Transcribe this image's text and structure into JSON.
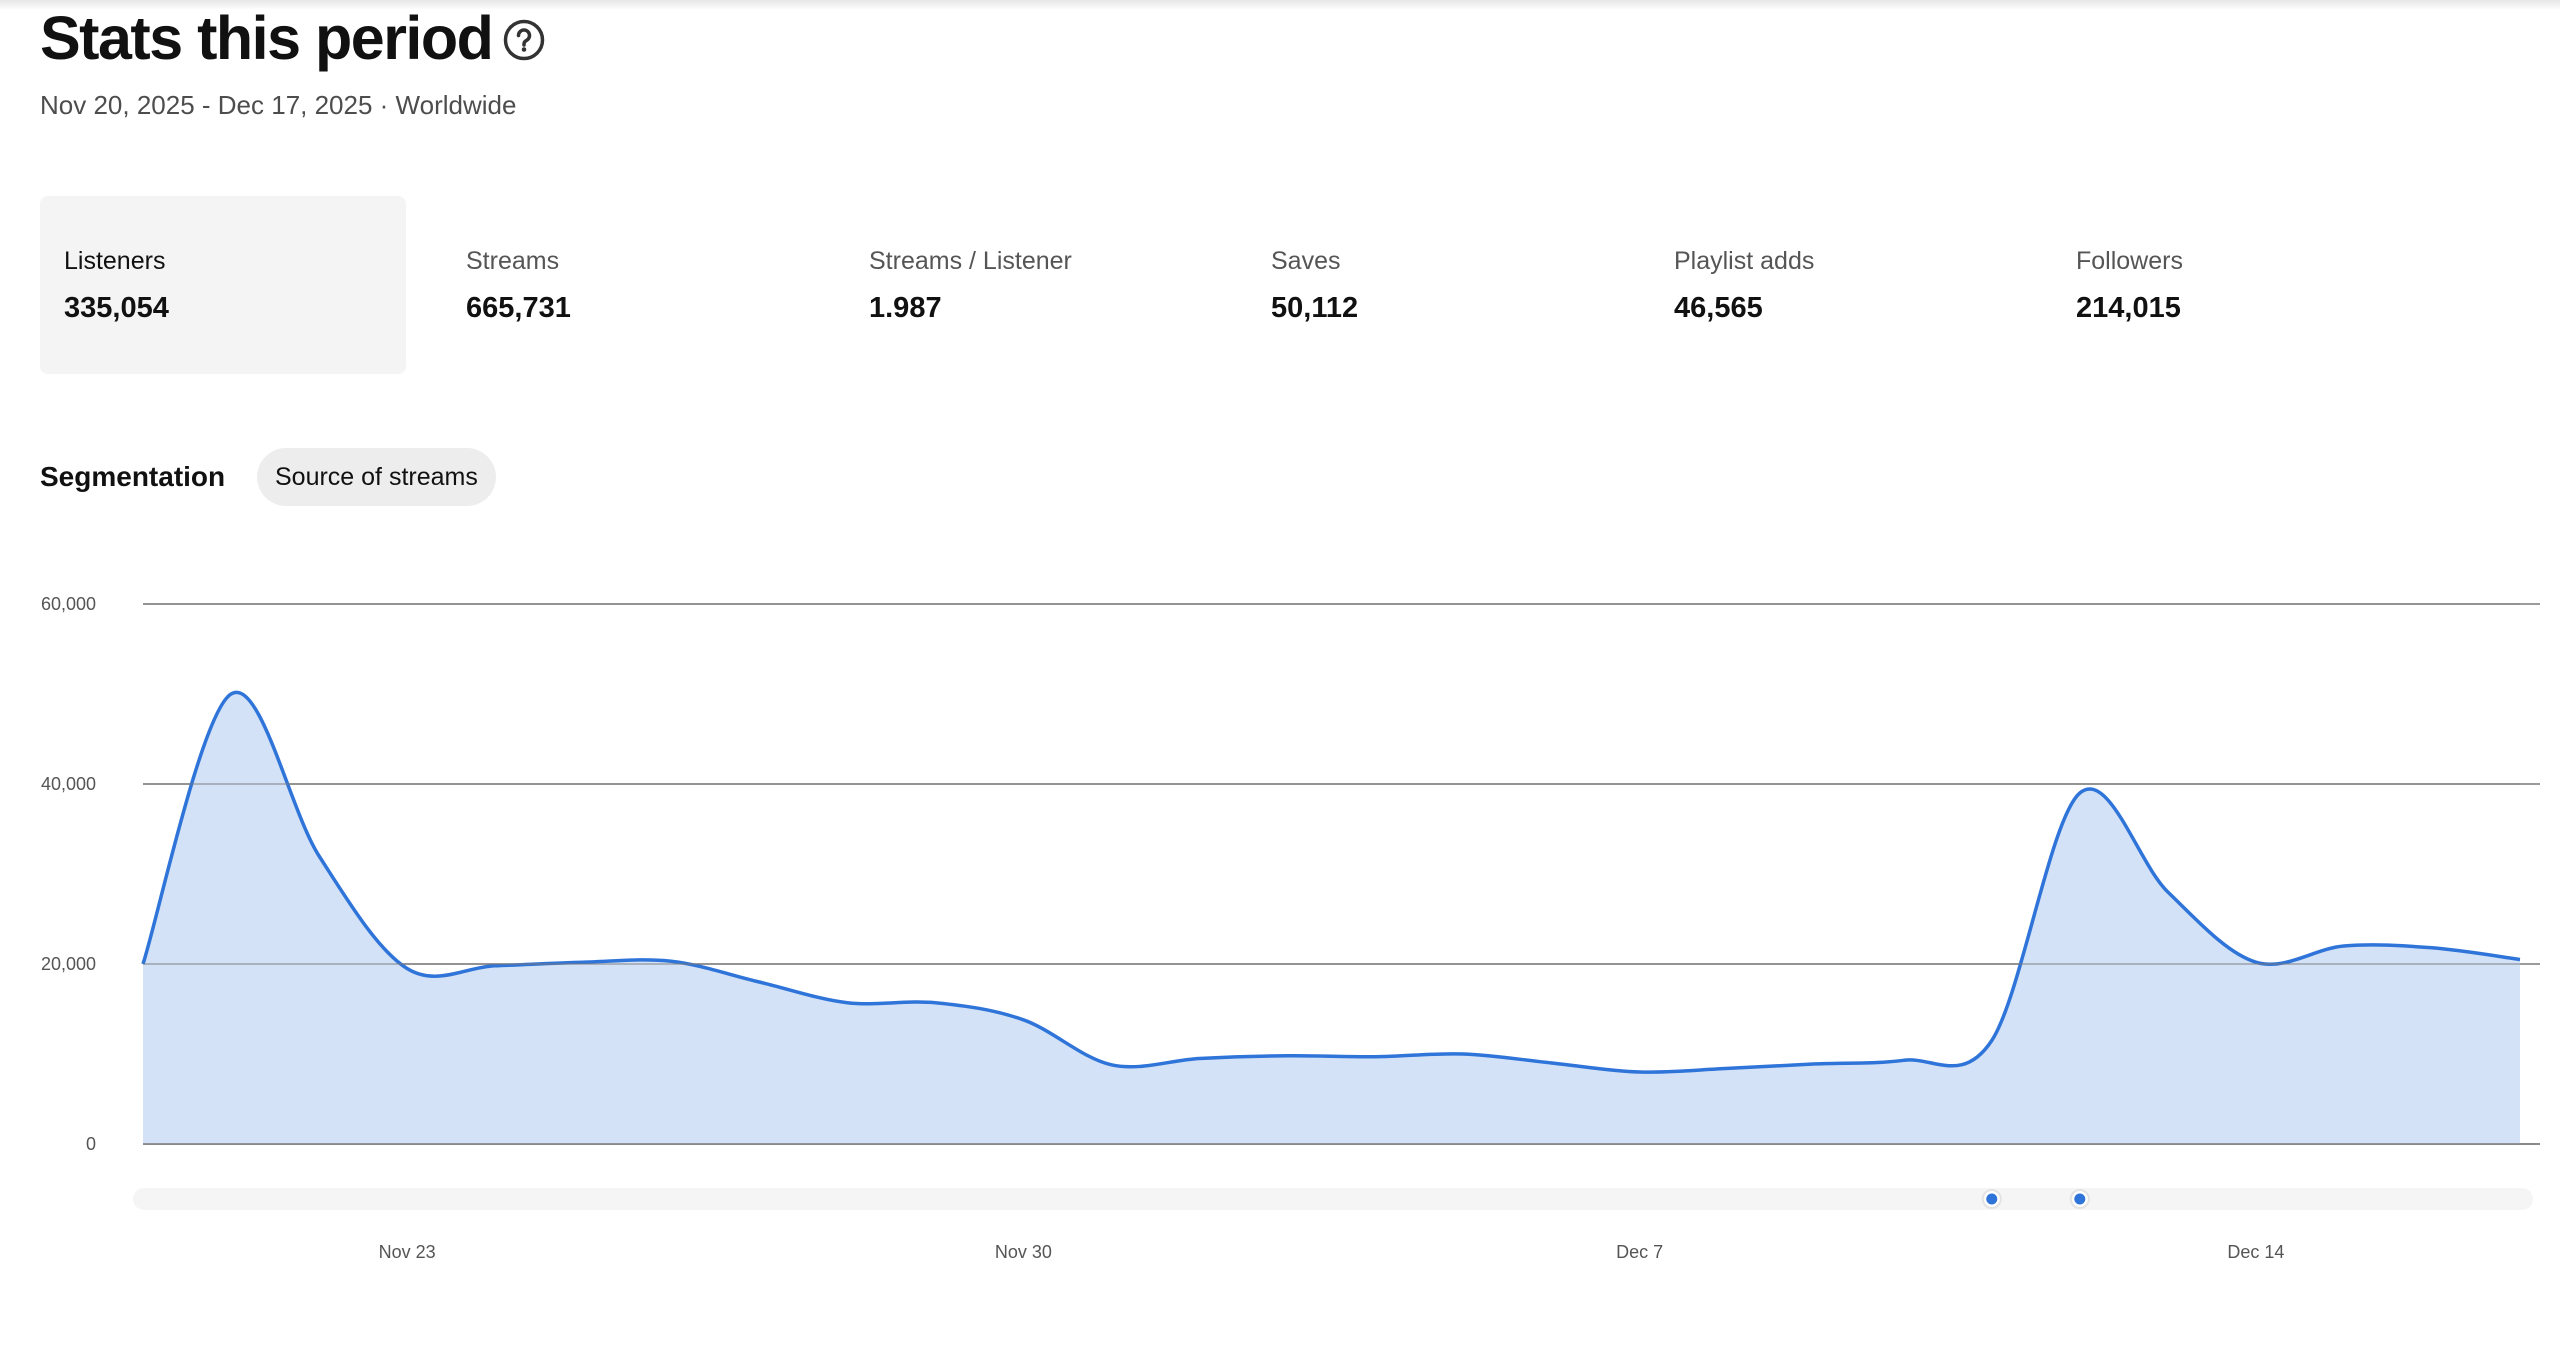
{
  "header": {
    "title": "Stats this period",
    "help_icon": "question-circle-icon",
    "subtitle": "Nov 20, 2025 - Dec 17, 2025 · Worldwide"
  },
  "metrics": [
    {
      "label": "Listeners",
      "value": "335,054",
      "selected": true
    },
    {
      "label": "Streams",
      "value": "665,731",
      "selected": false
    },
    {
      "label": "Streams / Listener",
      "value": "1.987",
      "selected": false
    },
    {
      "label": "Saves",
      "value": "50,112",
      "selected": false
    },
    {
      "label": "Playlist adds",
      "value": "46,565",
      "selected": false
    },
    {
      "label": "Followers",
      "value": "214,015",
      "selected": false
    }
  ],
  "segmentation": {
    "label": "Segmentation",
    "chip_label": "Source of streams"
  },
  "colors": {
    "line": "#2f74d9",
    "area": "#d3e2f6",
    "grid": "#7a7a7a",
    "selected_card": "#f4f4f4",
    "chip": "#ededed"
  },
  "chart_data": {
    "type": "area",
    "x": [
      "2025-11-20",
      "2025-11-21",
      "2025-11-22",
      "2025-11-23",
      "2025-11-24",
      "2025-11-25",
      "2025-11-26",
      "2025-11-27",
      "2025-11-28",
      "2025-11-29",
      "2025-11-30",
      "2025-12-01",
      "2025-12-02",
      "2025-12-03",
      "2025-12-04",
      "2025-12-05",
      "2025-12-06",
      "2025-12-07",
      "2025-12-08",
      "2025-12-09",
      "2025-12-10",
      "2025-12-11",
      "2025-12-12",
      "2025-12-13",
      "2025-12-14",
      "2025-12-15",
      "2025-12-16",
      "2025-12-17"
    ],
    "series": [
      {
        "values": [
          20000,
          50000,
          32000,
          19500,
          19800,
          20200,
          20300,
          18000,
          15700,
          15700,
          13800,
          8800,
          9500,
          9800,
          9700,
          10000,
          9000,
          8000,
          8400,
          8900,
          9300,
          11500,
          39000,
          28000,
          20200,
          22000,
          21800,
          20500
        ]
      }
    ],
    "ylim": [
      0,
      60000
    ],
    "yticks": [
      0,
      20000,
      40000,
      60000
    ],
    "ytick_labels": [
      "0",
      "20,000",
      "40,000",
      "60,000"
    ],
    "xtick_labels": [
      "Nov 23",
      "Nov 30",
      "Dec 7",
      "Dec 14"
    ],
    "xtick_dates": [
      "2025-11-23",
      "2025-11-30",
      "2025-12-07",
      "2025-12-14"
    ],
    "grid": true,
    "range_markers": [
      "2025-12-11",
      "2025-12-12"
    ]
  }
}
